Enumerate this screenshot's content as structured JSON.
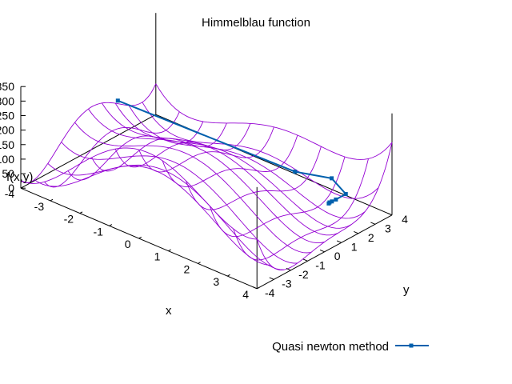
{
  "chart_data": {
    "type": "surface",
    "title": "Himmelblau function",
    "xlabel": "x",
    "ylabel": "y",
    "zlabel": "f(x,y)",
    "x_range": [
      -4,
      4
    ],
    "y_range": [
      -4,
      4
    ],
    "z_range": [
      0,
      350
    ],
    "x_ticks": [
      "-4",
      "-3",
      "-2",
      "-1",
      "0",
      "1",
      "2",
      "3",
      "4"
    ],
    "y_ticks": [
      "-4",
      "-3",
      "-2",
      "-1",
      "0",
      "1",
      "2",
      "3",
      "4"
    ],
    "z_ticks": [
      "0",
      "50",
      "100",
      "150",
      "200",
      "250",
      "300",
      "350"
    ],
    "surface": {
      "function": "(x^2 + y^2 - 11)^2 + (x + y^2 - 7)^2",
      "color": "#9400d3"
    },
    "series": [
      {
        "name": "Quasi newton method",
        "color": "#0060ad",
        "points": [
          {
            "x": -3.0,
            "y": 0.0,
            "z": 218
          },
          {
            "x": 2.2,
            "y": 1.4,
            "z": 154
          },
          {
            "x": 3.1,
            "y": 2.0,
            "z": 151
          },
          {
            "x": 3.35,
            "y": 2.4,
            "z": 95
          },
          {
            "x": 3.1,
            "y": 2.25,
            "z": 70
          },
          {
            "x": 3.05,
            "y": 2.1,
            "z": 66
          },
          {
            "x": 3.0,
            "y": 2.05,
            "z": 62
          },
          {
            "x": 3.0,
            "y": 2.0,
            "z": 60
          }
        ]
      }
    ],
    "legend": "bottom-right"
  }
}
